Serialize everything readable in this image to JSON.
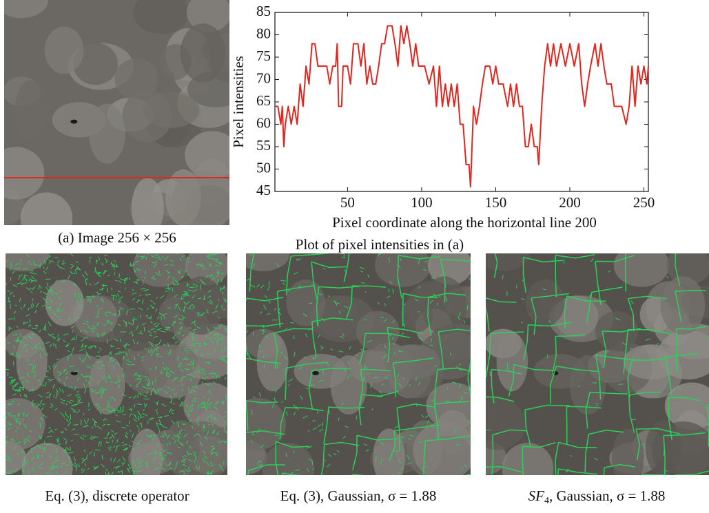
{
  "chart_data": {
    "type": "line",
    "title": "Plot of pixel intensities in (a)",
    "xlabel": "Pixel coordinate along the horizontal line 200",
    "ylabel": "Pixel intensities",
    "color": "#e0261e",
    "x": [
      1,
      3,
      5,
      6,
      7,
      8,
      10,
      12,
      14,
      16,
      18,
      20,
      22,
      24,
      26,
      28,
      30,
      33,
      36,
      38,
      40,
      42,
      43,
      44,
      46,
      47,
      50,
      52,
      54,
      57,
      59,
      61,
      63,
      65,
      67,
      69,
      71,
      73,
      75,
      77,
      80,
      82,
      84,
      86,
      88,
      90,
      92,
      94,
      96,
      98,
      102,
      105,
      108,
      110,
      112,
      114,
      116,
      118,
      120,
      122,
      124,
      126,
      128,
      130,
      132,
      133,
      135,
      137,
      139,
      141,
      143,
      146,
      148,
      150,
      152,
      155,
      158,
      160,
      162,
      164,
      166,
      168,
      170,
      172,
      174,
      176,
      178,
      179,
      181,
      183,
      185,
      187,
      189,
      191,
      194,
      197,
      200,
      203,
      206,
      208,
      210,
      212,
      214,
      217,
      219,
      221,
      223,
      225,
      228,
      230,
      233,
      235,
      238,
      240,
      242,
      244,
      246,
      248,
      250,
      252,
      253
    ],
    "values": [
      64,
      64,
      60,
      64,
      55,
      60,
      64,
      60,
      64,
      60,
      69,
      64,
      73,
      69,
      78,
      78,
      73,
      73,
      73,
      69,
      73,
      73,
      78,
      64,
      64,
      73,
      73,
      69,
      78,
      78,
      73,
      78,
      69,
      73,
      69,
      69,
      73,
      78,
      78,
      82,
      82,
      78,
      73,
      82,
      78,
      82,
      78,
      73,
      78,
      73,
      73,
      69,
      73,
      64,
      73,
      64,
      69,
      64,
      69,
      64,
      69,
      60,
      60,
      51,
      51,
      46,
      64,
      60,
      64,
      69,
      73,
      73,
      69,
      73,
      69,
      69,
      64,
      69,
      64,
      69,
      64,
      64,
      55,
      55,
      60,
      55,
      55,
      51,
      64,
      73,
      78,
      73,
      78,
      73,
      78,
      73,
      78,
      73,
      78,
      69,
      64,
      69,
      73,
      78,
      73,
      78,
      73,
      69,
      69,
      64,
      64,
      64,
      60,
      64,
      73,
      64,
      73,
      69,
      73,
      69,
      73
    ],
    "xlim": [
      1,
      253
    ],
    "xticks": [
      50,
      100,
      150,
      200,
      250
    ],
    "ylim": [
      45,
      85
    ],
    "yticks": [
      45,
      50,
      55,
      60,
      65,
      70,
      75,
      80,
      85
    ],
    "grid": false
  },
  "captions": {
    "image_a": "(a) Image 256 × 256",
    "panel_1": "Eq. (3), discrete operator",
    "panel_2": "Eq. (3), Gaussian, σ = 1.88",
    "panel_3": {
      "italic": "SF",
      "sub": "4",
      "rest": ", Gaussian, σ = 1.88"
    }
  }
}
